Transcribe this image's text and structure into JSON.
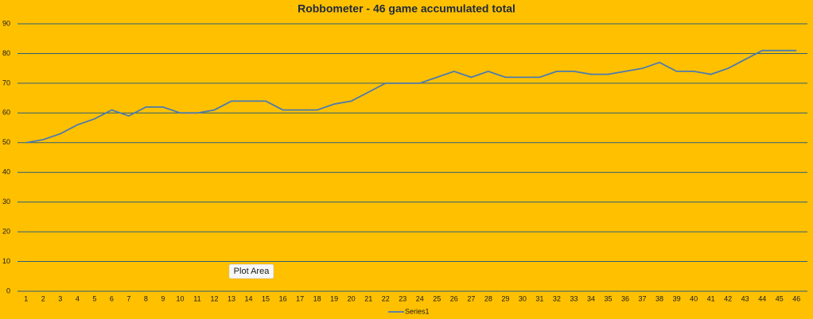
{
  "chart_data": {
    "type": "line",
    "title": "Robbometer - 46 game accumulated total",
    "categories": [
      "1",
      "2",
      "3",
      "4",
      "5",
      "6",
      "7",
      "8",
      "9",
      "10",
      "11",
      "12",
      "13",
      "14",
      "15",
      "16",
      "17",
      "18",
      "19",
      "20",
      "21",
      "22",
      "23",
      "24",
      "25",
      "26",
      "27",
      "28",
      "29",
      "30",
      "31",
      "32",
      "33",
      "34",
      "35",
      "36",
      "37",
      "38",
      "39",
      "40",
      "41",
      "42",
      "43",
      "44",
      "45",
      "46"
    ],
    "series": [
      {
        "name": "Series1",
        "color": "#4a7bb0",
        "values": [
          50,
          51,
          53,
          56,
          58,
          61,
          59,
          62,
          62,
          60,
          60,
          61,
          64,
          64,
          64,
          61,
          61,
          61,
          63,
          64,
          67,
          70,
          70,
          70,
          72,
          74,
          72,
          74,
          72,
          72,
          72,
          74,
          74,
          73,
          73,
          74,
          75,
          77,
          74,
          74,
          73,
          75,
          78,
          81,
          81,
          81
        ]
      }
    ],
    "ylim": [
      0,
      90
    ],
    "yticks": [
      0,
      10,
      20,
      30,
      40,
      50,
      60,
      70,
      80,
      90
    ],
    "grid": true,
    "tooltip": "Plot Area"
  }
}
